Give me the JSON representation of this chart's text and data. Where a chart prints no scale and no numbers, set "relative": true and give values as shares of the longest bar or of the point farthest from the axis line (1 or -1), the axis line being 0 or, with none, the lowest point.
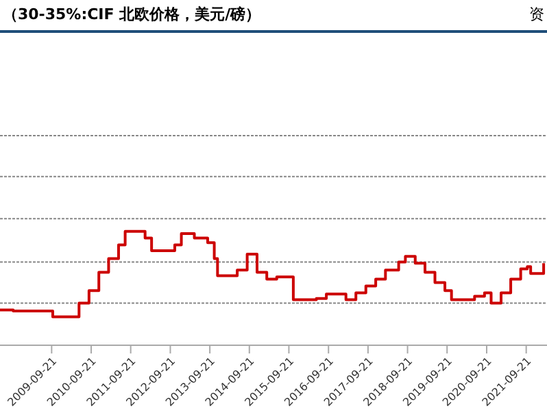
{
  "chart_data": {
    "type": "step",
    "title": "（30-35%:CIF 北欧价格，美元/磅）",
    "annotations": [
      "资"
    ],
    "relative": true,
    "ref_lines": [
      {
        "axis": "y",
        "value": 0.37,
        "color": "#888888",
        "line_style": "dashed"
      },
      {
        "axis": "y",
        "value": 0.73,
        "color": "#888888",
        "line_style": "dashed"
      },
      {
        "axis": "y",
        "value": 1.11,
        "color": "#888888",
        "line_style": "dashed"
      },
      {
        "axis": "y",
        "value": 1.48,
        "color": "#888888",
        "line_style": "dashed"
      },
      {
        "axis": "y",
        "value": 1.84,
        "color": "#888888",
        "line_style": "dashed"
      }
    ],
    "marker": "none",
    "line_style": "solid",
    "x": [
      "2008-06-01",
      "2008-10-01",
      "2009-03-01",
      "2009-10-01",
      "2010-03-01",
      "2010-06-01",
      "2010-09-01",
      "2010-12-01",
      "2011-03-01",
      "2011-06-01",
      "2011-08-01",
      "2012-02-01",
      "2012-04-01",
      "2012-11-01",
      "2013-01-01",
      "2013-05-01",
      "2013-09-01",
      "2013-11-01",
      "2013-12-01",
      "2014-06-01",
      "2014-09-01",
      "2014-12-01",
      "2015-03-01",
      "2015-06-01",
      "2015-11-01",
      "2016-06-01",
      "2016-09-01",
      "2017-03-01",
      "2017-06-01",
      "2017-09-01",
      "2017-12-01",
      "2018-03-01",
      "2018-07-01",
      "2018-09-01",
      "2018-12-01",
      "2019-03-01",
      "2019-06-01",
      "2019-09-01",
      "2019-11-01",
      "2020-06-01",
      "2020-09-01",
      "2020-11-01",
      "2021-02-01",
      "2021-05-01",
      "2021-08-01",
      "2021-10-01",
      "2021-11-01",
      "2022-03-01"
    ],
    "series": [
      {
        "color": "#cc0000",
        "values": [
          0.31,
          0.3,
          0.3,
          0.25,
          0.25,
          0.37,
          0.48,
          0.64,
          0.76,
          0.88,
          1.0,
          0.94,
          0.83,
          0.88,
          0.98,
          0.94,
          0.9,
          0.76,
          0.61,
          0.66,
          0.8,
          0.64,
          0.58,
          0.6,
          0.4,
          0.41,
          0.45,
          0.4,
          0.46,
          0.52,
          0.58,
          0.66,
          0.73,
          0.78,
          0.72,
          0.64,
          0.55,
          0.48,
          0.4,
          0.43,
          0.46,
          0.37,
          0.46,
          0.58,
          0.67,
          0.69,
          0.63,
          0.72
        ]
      }
    ],
    "xlim": [
      "2008-06-01",
      "2022-04-01"
    ],
    "xticks": [
      {
        "value": "2009-09-21",
        "label": "2009-09-21"
      },
      {
        "value": "2010-09-21",
        "label": "2010-09-21"
      },
      {
        "value": "2011-09-21",
        "label": "2011-09-21"
      },
      {
        "value": "2012-09-21",
        "label": "2012-09-21"
      },
      {
        "value": "2013-09-21",
        "label": "2013-09-21"
      },
      {
        "value": "2014-09-21",
        "label": "2014-09-21"
      },
      {
        "value": "2015-09-21",
        "label": "2015-09-21"
      },
      {
        "value": "2016-09-21",
        "label": "2016-09-21"
      },
      {
        "value": "2017-09-21",
        "label": "2017-09-21"
      },
      {
        "value": "2018-09-21",
        "label": "2018-09-21"
      },
      {
        "value": "2019-09-21",
        "label": "2019-09-21"
      },
      {
        "value": "2020-09-21",
        "label": "2020-09-21"
      },
      {
        "value": "2021-09-21",
        "label": "2021-09-21"
      }
    ]
  }
}
